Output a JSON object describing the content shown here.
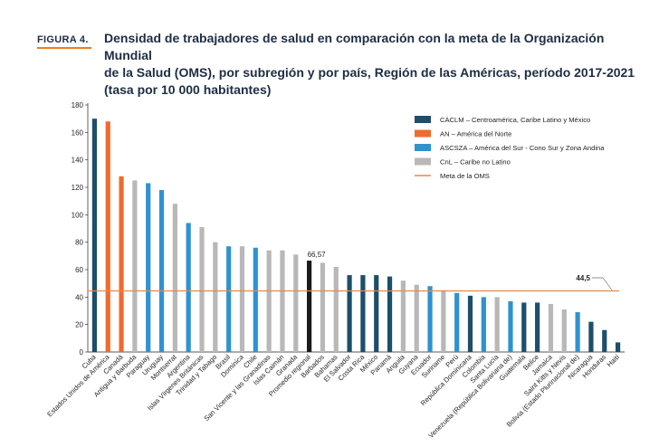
{
  "figure": {
    "label": "FIGURA 4.",
    "title_lines": [
      "Densidad de trabajadores de salud en comparación con la meta de la Organización Mundial",
      "de la Salud (OMS), por subregión y por país, Región de las Américas, período 2017-2021",
      "(tasa por 10 000 habitantes)"
    ]
  },
  "colors": {
    "CACLM": "#1b4f6b",
    "AN": "#ef6b2e",
    "ASCSZA": "#2e93cf",
    "CnL": "#b8b8b8",
    "regional": "#1a1a1a",
    "meta": "#e7884a"
  },
  "chart_data": {
    "type": "bar",
    "ylim": [
      0,
      180
    ],
    "yticks": [
      0,
      20,
      40,
      60,
      80,
      100,
      120,
      140,
      160,
      180
    ],
    "legend": [
      {
        "key": "CACLM",
        "label": "CȦCLM – Centroamérica, Caribe Latino y México"
      },
      {
        "key": "AN",
        "label": "AN – América del Norte"
      },
      {
        "key": "ASCSZA",
        "label": "ASCSZA – América del Sur - Cono Sur y Zona Andina"
      },
      {
        "key": "CnL",
        "label": "CnL – Caribe no Latino"
      },
      {
        "key": "meta",
        "label": "Meta de la OMS",
        "line": true
      }
    ],
    "reference_line": {
      "value": 44.5,
      "label": "44,5"
    },
    "bar_label": {
      "category": "Promedio regional",
      "text": "66,57"
    },
    "categories": [
      "Cuba",
      "Estados Unidos de América",
      "Canadá",
      "Antigua y Barbuda",
      "Paraguay",
      "Uruguay",
      "Montserrat",
      "Argentina",
      "Islas Vírgenes Británicas",
      "Trinidad y Tabago",
      "Brasil",
      "Dominica",
      "Chile",
      "San Vicente y las Granadinas",
      "Islas Caimán",
      "Granada",
      "Promedio regional",
      "Barbados",
      "Bahamas",
      "El Salvador",
      "Costa Rica",
      "México",
      "Panamá",
      "Anguila",
      "Guyana",
      "Ecuador",
      "Suriname",
      "Perú",
      "República Dominicana",
      "Colombia",
      "Santa Lucía",
      "Venezuela (República Bolivariana de)",
      "Guatemala",
      "Belice",
      "Jamaica",
      "Saint Kitts y Nevis",
      "Bolivia (Estado Plurinacional de)",
      "Nicaragua",
      "Honduras",
      "Haití"
    ],
    "values": [
      170,
      168,
      128,
      125,
      123,
      118,
      108,
      94,
      91,
      80,
      77,
      77,
      76,
      74,
      74,
      71,
      66.57,
      65,
      62,
      56,
      56,
      56,
      55,
      52,
      49,
      48,
      45,
      43,
      41,
      40,
      40,
      37,
      36,
      36,
      35,
      31,
      29,
      22,
      16,
      7
    ],
    "groups": [
      "CACLM",
      "AN",
      "AN",
      "CnL",
      "ASCSZA",
      "ASCSZA",
      "CnL",
      "ASCSZA",
      "CnL",
      "CnL",
      "ASCSZA",
      "CnL",
      "ASCSZA",
      "CnL",
      "CnL",
      "CnL",
      "regional",
      "CnL",
      "CnL",
      "CACLM",
      "CACLM",
      "CACLM",
      "CACLM",
      "CnL",
      "CnL",
      "ASCSZA",
      "CnL",
      "ASCSZA",
      "CACLM",
      "ASCSZA",
      "CnL",
      "ASCSZA",
      "CACLM",
      "CACLM",
      "CnL",
      "CnL",
      "ASCSZA",
      "CACLM",
      "CACLM",
      "CACLM"
    ]
  }
}
